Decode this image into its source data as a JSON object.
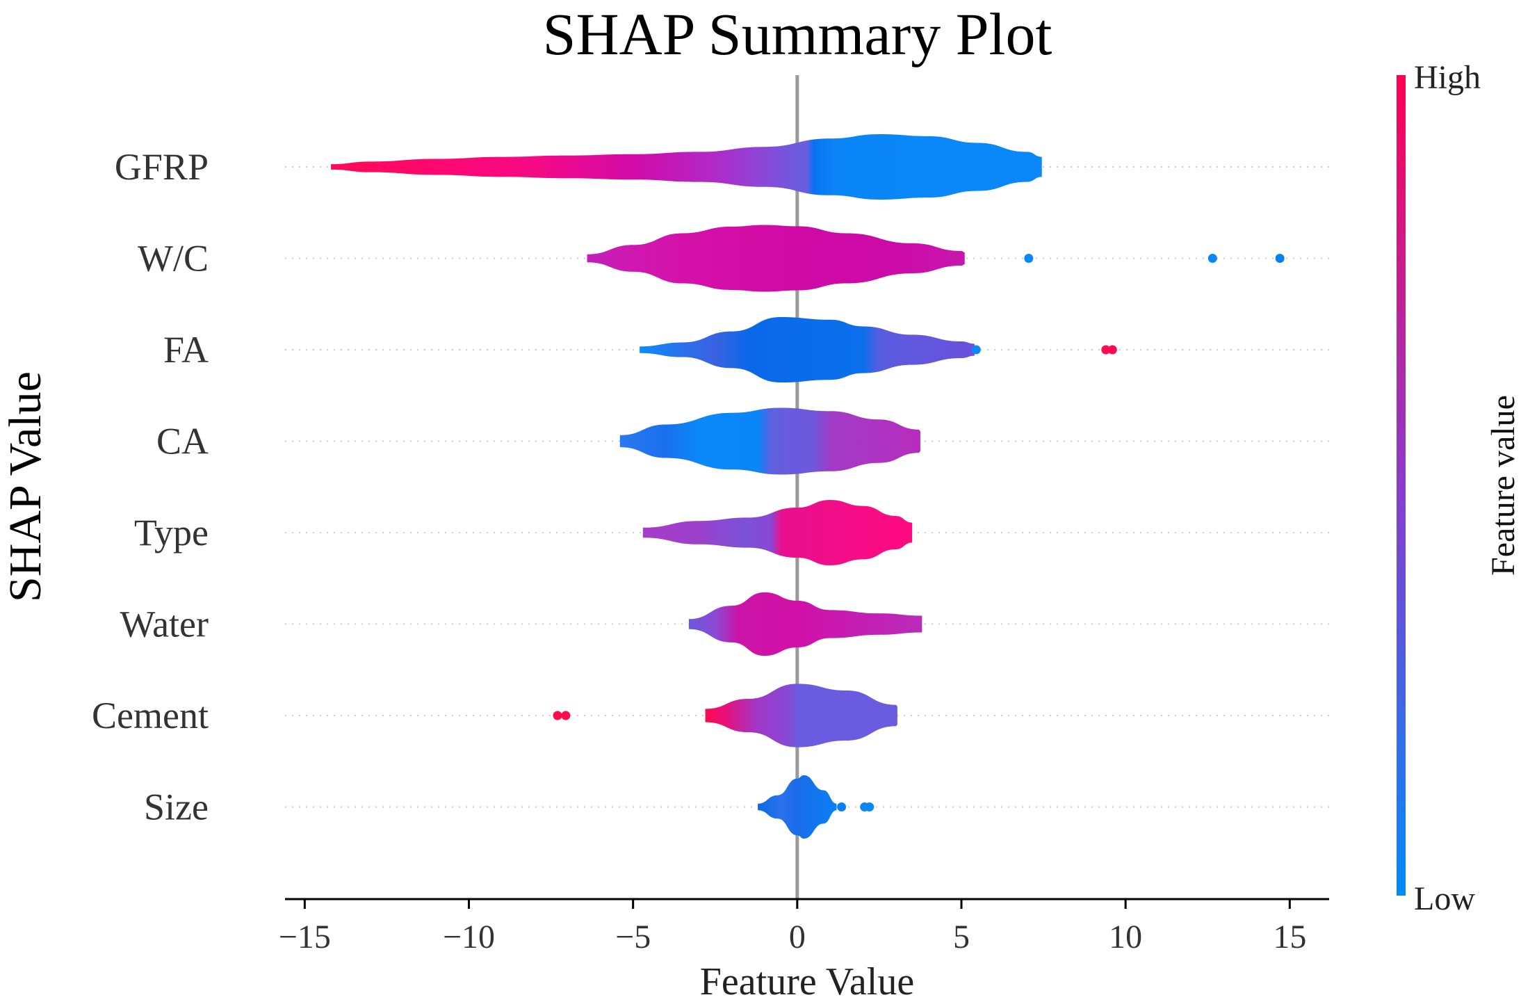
{
  "chart_data": {
    "type": "violin",
    "title": "SHAP Summary Plot",
    "xlabel": "Feature Value",
    "ylabel": "SHAP Value",
    "xlim": [
      -15.6,
      16.2
    ],
    "xticks": [
      -15,
      -10,
      -5,
      0,
      5,
      10,
      15
    ],
    "xtick_labels": [
      "−15",
      "−10",
      "−5",
      "0",
      "5",
      "10",
      "15"
    ],
    "zero_line": 0,
    "colorbar": {
      "label": "Feature value",
      "high_label": "High",
      "low_label": "Low",
      "high_color": "#ff0052",
      "low_color": "#008bfb"
    },
    "features": [
      {
        "name": "GFRP",
        "profile": [
          [
            -14.2,
            0.08
          ],
          [
            -13,
            0.16
          ],
          [
            -11,
            0.24
          ],
          [
            -9,
            0.3
          ],
          [
            -7,
            0.34
          ],
          [
            -5,
            0.38
          ],
          [
            -3,
            0.45
          ],
          [
            -1,
            0.6
          ],
          [
            1,
            0.85
          ],
          [
            2.5,
            0.98
          ],
          [
            4,
            0.92
          ],
          [
            5.5,
            0.72
          ],
          [
            7,
            0.45
          ],
          [
            7.45,
            0.3
          ]
        ],
        "gradient": [
          [
            -14.2,
            "#ff0a55"
          ],
          [
            -11,
            "#ff0870"
          ],
          [
            -8,
            "#f50a85"
          ],
          [
            -5,
            "#d20aa8"
          ],
          [
            -2.5,
            "#b02ac8"
          ],
          [
            -1,
            "#8a48d8"
          ],
          [
            0.3,
            "#6560e0"
          ],
          [
            0.5,
            "#0a72f0"
          ],
          [
            1.2,
            "#0a86f8"
          ],
          [
            7.45,
            "#0a88fa"
          ]
        ],
        "points": []
      },
      {
        "name": "W/C",
        "profile": [
          [
            -6.4,
            0.12
          ],
          [
            -5,
            0.4
          ],
          [
            -3.5,
            0.75
          ],
          [
            -2,
            0.95
          ],
          [
            -1,
            1.0
          ],
          [
            0,
            0.96
          ],
          [
            1.5,
            0.75
          ],
          [
            3.5,
            0.45
          ],
          [
            5,
            0.22
          ],
          [
            5.1,
            0.18
          ]
        ],
        "gradient": [
          [
            -6.4,
            "#c020b8"
          ],
          [
            -5,
            "#d018b0"
          ],
          [
            -3,
            "#d510a8"
          ],
          [
            0,
            "#cf0aa5"
          ],
          [
            3,
            "#cc0aa8"
          ],
          [
            5.1,
            "#c818ac"
          ]
        ],
        "points": [
          [
            7.05,
            "#0a88fa"
          ],
          [
            12.65,
            "#0a88fa"
          ],
          [
            14.7,
            "#0a80f5"
          ]
        ]
      },
      {
        "name": "FA",
        "profile": [
          [
            -4.8,
            0.1
          ],
          [
            -3.5,
            0.22
          ],
          [
            -2,
            0.55
          ],
          [
            -0.5,
            0.98
          ],
          [
            1,
            0.9
          ],
          [
            2,
            0.7
          ],
          [
            3.5,
            0.45
          ],
          [
            5,
            0.25
          ],
          [
            5.4,
            0.18
          ]
        ],
        "gradient": [
          [
            -4.8,
            "#0a8cfa"
          ],
          [
            -3.5,
            "#2a70ea"
          ],
          [
            -2.5,
            "#3a62e2"
          ],
          [
            -1.5,
            "#0a68e8"
          ],
          [
            2,
            "#0a70ec"
          ],
          [
            2.5,
            "#5a5ce0"
          ],
          [
            5.4,
            "#6a50dc"
          ]
        ],
        "points": [
          [
            5.45,
            "#0a88fa"
          ],
          [
            9.4,
            "#ff0a4f"
          ],
          [
            9.6,
            "#ff0a4f"
          ]
        ]
      },
      {
        "name": "CA",
        "profile": [
          [
            -5.4,
            0.18
          ],
          [
            -4,
            0.5
          ],
          [
            -2,
            0.85
          ],
          [
            -0.5,
            1.0
          ],
          [
            1,
            0.9
          ],
          [
            2.5,
            0.65
          ],
          [
            3.7,
            0.35
          ],
          [
            3.75,
            0.3
          ]
        ],
        "gradient": [
          [
            -5.4,
            "#2a78f0"
          ],
          [
            -4,
            "#1a70ec"
          ],
          [
            -3,
            "#0a88fa"
          ],
          [
            -1.2,
            "#0a86f8"
          ],
          [
            -0.8,
            "#6060e0"
          ],
          [
            0.5,
            "#7058dc"
          ],
          [
            1,
            "#a03cc8"
          ],
          [
            3.75,
            "#b82cbc"
          ]
        ],
        "points": []
      },
      {
        "name": "Type",
        "profile": [
          [
            -4.7,
            0.15
          ],
          [
            -3,
            0.35
          ],
          [
            -1.5,
            0.45
          ],
          [
            0,
            0.75
          ],
          [
            1,
            0.98
          ],
          [
            2,
            0.8
          ],
          [
            3,
            0.5
          ],
          [
            3.5,
            0.3
          ]
        ],
        "gradient": [
          [
            -4.7,
            "#a83cc8"
          ],
          [
            -3,
            "#9c40cc"
          ],
          [
            -1.6,
            "#7a52d8"
          ],
          [
            -0.8,
            "#8a48d4"
          ],
          [
            -0.5,
            "#e8108e"
          ],
          [
            3.5,
            "#ff0a80"
          ]
        ],
        "points": []
      },
      {
        "name": "Water",
        "profile": [
          [
            -3.3,
            0.15
          ],
          [
            -2,
            0.55
          ],
          [
            -1,
            0.95
          ],
          [
            0,
            0.7
          ],
          [
            1,
            0.42
          ],
          [
            2.5,
            0.32
          ],
          [
            3.8,
            0.25
          ]
        ],
        "gradient": [
          [
            -3.3,
            "#6a58dc"
          ],
          [
            -2.5,
            "#8a4ad4"
          ],
          [
            -1.8,
            "#cc14a8"
          ],
          [
            0,
            "#d010a8"
          ],
          [
            3.8,
            "#b82cbc"
          ]
        ],
        "points": []
      },
      {
        "name": "Cement",
        "profile": [
          [
            -2.8,
            0.2
          ],
          [
            -1.5,
            0.5
          ],
          [
            0,
            0.95
          ],
          [
            1.5,
            0.75
          ],
          [
            3,
            0.32
          ],
          [
            3.05,
            0.28
          ]
        ],
        "gradient": [
          [
            -2.8,
            "#ff0a50"
          ],
          [
            -2.2,
            "#e8107a"
          ],
          [
            -1.2,
            "#a038c8"
          ],
          [
            -0.3,
            "#8848d4"
          ],
          [
            0,
            "#6a5ce0"
          ],
          [
            3.05,
            "#6a5ce0"
          ]
        ],
        "points": [
          [
            -7.3,
            "#ff0a4f"
          ],
          [
            -7.05,
            "#ff0a4f"
          ]
        ]
      },
      {
        "name": "Size",
        "profile": [
          [
            -1.2,
            0.1
          ],
          [
            -0.6,
            0.35
          ],
          [
            0,
            0.85
          ],
          [
            0.2,
            0.95
          ],
          [
            0.8,
            0.5
          ],
          [
            1.2,
            0.1
          ]
        ],
        "gradient": [
          [
            -1.2,
            "#0a6ae8"
          ],
          [
            -0.5,
            "#2a70ea"
          ],
          [
            0,
            "#1a6cea"
          ],
          [
            1.2,
            "#0a80f5"
          ]
        ],
        "points": [
          [
            1.35,
            "#0a80f5"
          ],
          [
            2.05,
            "#0a88fa"
          ],
          [
            2.2,
            "#0a88fa"
          ]
        ]
      }
    ]
  }
}
